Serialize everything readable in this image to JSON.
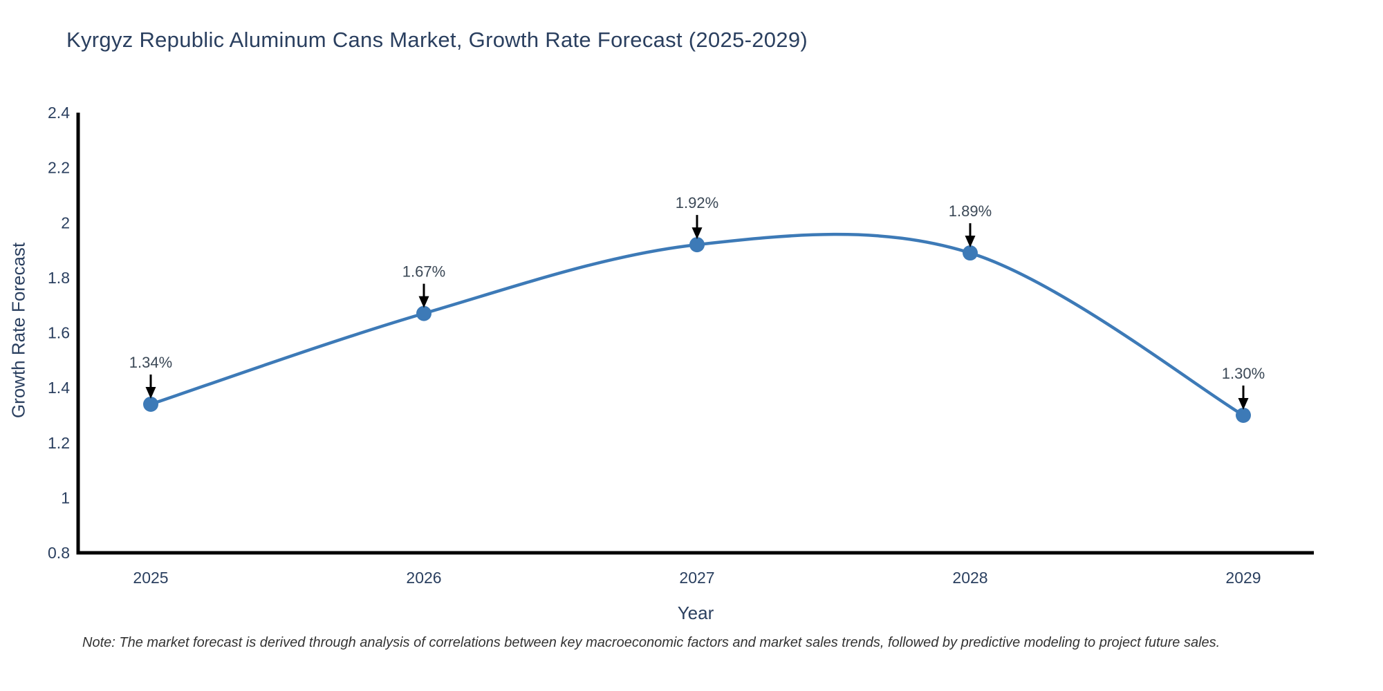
{
  "chart_data": {
    "type": "line",
    "line_shape": "spline",
    "title": "Kyrgyz Republic Aluminum Cans Market, Growth Rate Forecast (2025-2029)",
    "xlabel": "Year",
    "ylabel": "Growth Rate Forecast",
    "categories": [
      "2025",
      "2026",
      "2027",
      "2028",
      "2029"
    ],
    "values": [
      1.34,
      1.67,
      1.92,
      1.89,
      1.3
    ],
    "point_labels": [
      "1.34%",
      "1.67%",
      "1.92%",
      "1.89%",
      "1.30%"
    ],
    "ylim": [
      0.8,
      2.4
    ],
    "yticks": [
      0.8,
      1,
      1.2,
      1.4,
      1.6,
      1.8,
      2,
      2.2,
      2.4
    ],
    "grid": false,
    "legend": "none",
    "colors": {
      "line": "#3d7ab7",
      "marker": "#3d7ab7",
      "axis": "#000000",
      "tick_text": "#2a3f5f",
      "annotation_text": "#3b4856",
      "arrow": "#000000"
    },
    "note": "Note: The market forecast is derived through analysis of correlations between key macroeconomic factors and market sales trends, followed by predictive modeling to project future sales."
  }
}
